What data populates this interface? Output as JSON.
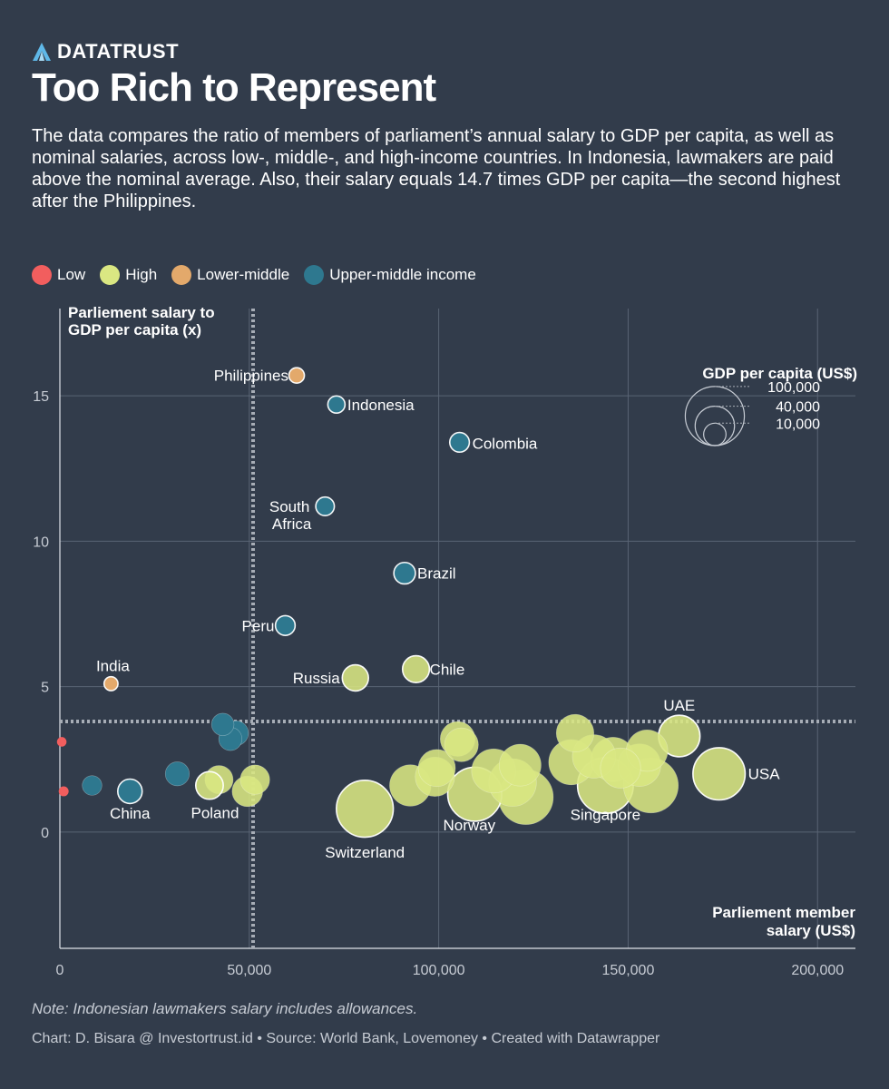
{
  "brand": {
    "name": "DATATRUST",
    "icon": "datatrust-logo-icon"
  },
  "header": {
    "title": "Too Rich to Represent",
    "subtitle": "The data compares the ratio of members of parliament’s annual salary to GDP per capita, as well as nominal salaries, across low-, middle-, and high-income countries. In Indonesia, lawmakers are paid above the nominal average. Also, their salary equals 14.7 times GDP per capita—the second highest after the Philippines."
  },
  "legend": [
    {
      "label": "Low",
      "color": "#f25e5e"
    },
    {
      "label": "High",
      "color": "#dae782"
    },
    {
      "label": "Lower-middle",
      "color": "#e3a96b"
    },
    {
      "label": "Upper-middle income",
      "color": "#2e788f"
    }
  ],
  "chart_data": {
    "type": "scatter",
    "title": "Too Rich to Represent",
    "ylabel": "Parliement salary to GDP per capita (x)",
    "xlabel": "Parliement member salary (US$)",
    "xlim": [
      0,
      210000
    ],
    "ylim": [
      -4,
      18
    ],
    "xticks": [
      0,
      50000,
      100000,
      150000,
      200000
    ],
    "xtick_labels": [
      "0",
      "50,000",
      "100,000",
      "150,000",
      "200,000"
    ],
    "yticks": [
      0,
      5,
      10,
      15
    ],
    "ytick_labels": [
      "0",
      "5",
      "10",
      "15"
    ],
    "reference_lines": {
      "x": 51000,
      "y": 3.8
    },
    "size_legend": {
      "title": "GDP per capita (US$)",
      "values": [
        100000,
        40000,
        10000
      ],
      "labels": [
        "100,000",
        "40,000",
        "10,000"
      ]
    },
    "group_colors": {
      "Low": "#f25e5e",
      "High": "#dae782",
      "Lower-middle": "#e3a96b",
      "Upper-middle": "#2e788f"
    },
    "points": [
      {
        "label": "Philippines",
        "x": 62500,
        "y": 15.7,
        "gdp": 3500,
        "group": "Lower-middle"
      },
      {
        "label": "Indonesia",
        "x": 73000,
        "y": 14.7,
        "gdp": 4800,
        "group": "Upper-middle"
      },
      {
        "label": "Colombia",
        "x": 105500,
        "y": 13.4,
        "gdp": 7000,
        "group": "Upper-middle"
      },
      {
        "label": "South Africa",
        "x": 70000,
        "y": 11.2,
        "gdp": 6000,
        "group": "Upper-middle"
      },
      {
        "label": "Brazil",
        "x": 91000,
        "y": 8.9,
        "gdp": 9000,
        "group": "Upper-middle"
      },
      {
        "label": "Peru",
        "x": 59500,
        "y": 7.1,
        "gdp": 7100,
        "group": "Upper-middle"
      },
      {
        "label": "India",
        "x": 13500,
        "y": 5.1,
        "gdp": 2500,
        "group": "Lower-middle"
      },
      {
        "label": "Russia",
        "x": 78000,
        "y": 5.3,
        "gdp": 15000,
        "group": "High"
      },
      {
        "label": "Chile",
        "x": 94000,
        "y": 5.6,
        "gdp": 16000,
        "group": "High"
      },
      {
        "label": "UAE",
        "x": 163500,
        "y": 3.3,
        "gdp": 45000,
        "group": "High"
      },
      {
        "label": "China",
        "x": 18500,
        "y": 1.4,
        "gdp": 12500,
        "group": "Upper-middle"
      },
      {
        "label": "Poland",
        "x": 39500,
        "y": 1.6,
        "gdp": 17000,
        "group": "High"
      },
      {
        "label": "Switzerland",
        "x": 80500,
        "y": 0.8,
        "gdp": 92000,
        "group": "High"
      },
      {
        "label": "Norway",
        "x": 109500,
        "y": 1.3,
        "gdp": 82000,
        "group": "High"
      },
      {
        "label": "Singapore",
        "x": 144000,
        "y": 1.6,
        "gdp": 88000,
        "group": "High"
      },
      {
        "label": "USA",
        "x": 174000,
        "y": 2.0,
        "gdp": 76000,
        "group": "High"
      },
      {
        "label": "",
        "x": 500,
        "y": 3.1,
        "gdp": 600,
        "group": "Low"
      },
      {
        "label": "",
        "x": 1000,
        "y": 1.4,
        "gdp": 700,
        "group": "Low"
      },
      {
        "label": "",
        "x": 8500,
        "y": 1.6,
        "gdp": 7000,
        "group": "Upper-middle"
      },
      {
        "label": "",
        "x": 31000,
        "y": 2.0,
        "gdp": 12000,
        "group": "Upper-middle"
      },
      {
        "label": "",
        "x": 43000,
        "y": 3.7,
        "gdp": 10000,
        "group": "Upper-middle"
      },
      {
        "label": "",
        "x": 45000,
        "y": 3.2,
        "gdp": 11000,
        "group": "Upper-middle"
      },
      {
        "label": "",
        "x": 46500,
        "y": 3.4,
        "gdp": 13000,
        "group": "Upper-middle"
      },
      {
        "label": "",
        "x": 42000,
        "y": 1.8,
        "gdp": 18000,
        "group": "High"
      },
      {
        "label": "",
        "x": 49500,
        "y": 1.4,
        "gdp": 22000,
        "group": "High"
      },
      {
        "label": "",
        "x": 51500,
        "y": 1.8,
        "gdp": 20000,
        "group": "High"
      },
      {
        "label": "",
        "x": 92500,
        "y": 1.6,
        "gdp": 45000,
        "group": "High"
      },
      {
        "label": "",
        "x": 99000,
        "y": 1.9,
        "gdp": 40000,
        "group": "High"
      },
      {
        "label": "",
        "x": 99500,
        "y": 2.2,
        "gdp": 35000,
        "group": "High"
      },
      {
        "label": "",
        "x": 105000,
        "y": 3.2,
        "gdp": 30000,
        "group": "High"
      },
      {
        "label": "",
        "x": 106000,
        "y": 3.0,
        "gdp": 28000,
        "group": "High"
      },
      {
        "label": "",
        "x": 114500,
        "y": 2.1,
        "gdp": 52000,
        "group": "High"
      },
      {
        "label": "",
        "x": 119500,
        "y": 1.7,
        "gdp": 62000,
        "group": "High"
      },
      {
        "label": "",
        "x": 121500,
        "y": 2.3,
        "gdp": 46000,
        "group": "High"
      },
      {
        "label": "",
        "x": 123000,
        "y": 1.2,
        "gdp": 85000,
        "group": "High"
      },
      {
        "label": "",
        "x": 135000,
        "y": 2.4,
        "gdp": 55000,
        "group": "High"
      },
      {
        "label": "",
        "x": 136000,
        "y": 3.4,
        "gdp": 36000,
        "group": "High"
      },
      {
        "label": "",
        "x": 141000,
        "y": 2.6,
        "gdp": 50000,
        "group": "High"
      },
      {
        "label": "",
        "x": 146000,
        "y": 2.5,
        "gdp": 52000,
        "group": "High"
      },
      {
        "label": "",
        "x": 148000,
        "y": 2.2,
        "gdp": 42000,
        "group": "High"
      },
      {
        "label": "",
        "x": 153000,
        "y": 2.3,
        "gdp": 48000,
        "group": "High"
      },
      {
        "label": "",
        "x": 155000,
        "y": 2.8,
        "gdp": 45000,
        "group": "High"
      },
      {
        "label": "",
        "x": 156000,
        "y": 1.6,
        "gdp": 85000,
        "group": "High"
      }
    ]
  },
  "footer": {
    "note": "Note: Indonesian lawmakers salary includes allowances.",
    "credit": "Chart: D. Bisara @ Investortrust.id  • Source: World Bank, Lovemoney • Created with Datawrapper"
  }
}
